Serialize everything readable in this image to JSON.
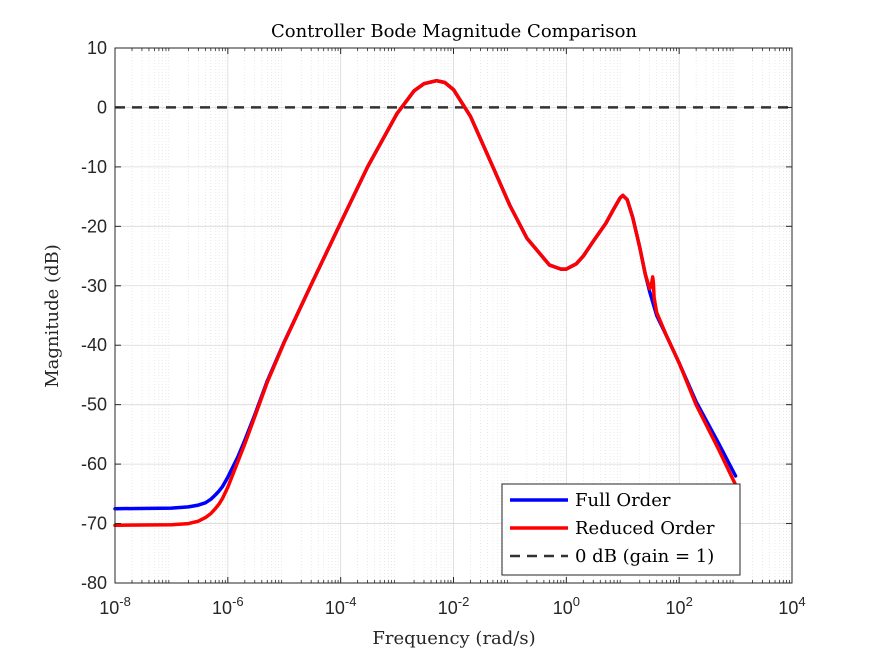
{
  "chart_data": {
    "type": "line",
    "title": "Controller Bode Magnitude Comparison",
    "xlabel": "Frequency (rad/s)",
    "ylabel": "Magnitude (dB)",
    "x_scale": "log",
    "xlim": [
      1e-08,
      10000
    ],
    "ylim": [
      -80,
      10
    ],
    "grid": true,
    "minor_grid": true,
    "legend_position": "bottom-right",
    "x_ticks": [
      {
        "value": 1e-08,
        "base": "10",
        "exp": "-8"
      },
      {
        "value": 1e-06,
        "base": "10",
        "exp": "-6"
      },
      {
        "value": 0.0001,
        "base": "10",
        "exp": "-4"
      },
      {
        "value": 0.01,
        "base": "10",
        "exp": "-2"
      },
      {
        "value": 1,
        "base": "10",
        "exp": "0"
      },
      {
        "value": 100,
        "base": "10",
        "exp": "2"
      },
      {
        "value": 10000,
        "base": "10",
        "exp": "4"
      }
    ],
    "y_ticks": [
      10,
      0,
      -10,
      -20,
      -30,
      -40,
      -50,
      -60,
      -70,
      -80
    ],
    "y_tick_labels": [
      "10",
      "0",
      "-10",
      "-20",
      "-30",
      "-40",
      "-50",
      "-60",
      "-70",
      "-80"
    ],
    "series": [
      {
        "name": "Full Order",
        "color": "#0000ff",
        "style": "solid",
        "x": [
          1e-08,
          1e-07,
          2e-07,
          3e-07,
          4e-07,
          5e-07,
          6e-07,
          7e-07,
          8e-07,
          1e-06,
          1.5e-06,
          2e-06,
          3e-06,
          5e-06,
          1e-05,
          3e-05,
          0.0001,
          0.0003,
          0.001,
          0.002,
          0.003,
          0.005,
          0.007,
          0.01,
          0.02,
          0.05,
          0.1,
          0.2,
          0.5,
          0.8,
          1,
          1.5,
          2,
          3,
          5,
          7,
          9,
          10,
          12,
          15,
          20,
          25,
          30,
          40,
          60,
          80,
          100,
          200,
          500,
          1000
        ],
        "y": [
          -67.5,
          -67.4,
          -67.2,
          -66.9,
          -66.5,
          -65.9,
          -65.2,
          -64.5,
          -63.8,
          -62.2,
          -58.8,
          -56.0,
          -51.7,
          -46.0,
          -39.4,
          -29.8,
          -19.4,
          -10.0,
          -1.0,
          2.8,
          4.0,
          4.5,
          4.2,
          3.0,
          -1.5,
          -10.0,
          -16.5,
          -22.0,
          -26.5,
          -27.2,
          -27.2,
          -26.3,
          -25.0,
          -22.5,
          -19.5,
          -17.0,
          -15.2,
          -14.8,
          -15.5,
          -18.5,
          -23.5,
          -28.0,
          -31.0,
          -35.0,
          -38.5,
          -41.0,
          -43.0,
          -49.5,
          -56.5,
          -62.0
        ]
      },
      {
        "name": "Reduced Order",
        "color": "#ff0000",
        "style": "solid",
        "x": [
          1e-08,
          1e-07,
          2e-07,
          3e-07,
          4e-07,
          5e-07,
          6e-07,
          7e-07,
          8e-07,
          1e-06,
          1.5e-06,
          2e-06,
          3e-06,
          5e-06,
          1e-05,
          3e-05,
          0.0001,
          0.0003,
          0.001,
          0.002,
          0.003,
          0.005,
          0.007,
          0.01,
          0.02,
          0.05,
          0.1,
          0.2,
          0.5,
          0.8,
          1,
          1.5,
          2,
          3,
          5,
          7,
          9,
          10,
          12,
          15,
          20,
          25,
          30,
          32,
          34,
          35,
          36,
          40,
          60,
          80,
          100,
          200,
          500,
          1000
        ],
        "y": [
          -70.3,
          -70.2,
          -70.0,
          -69.6,
          -69.0,
          -68.3,
          -67.5,
          -66.7,
          -65.8,
          -63.9,
          -59.6,
          -56.6,
          -52.0,
          -46.2,
          -39.5,
          -29.8,
          -19.4,
          -10.0,
          -1.0,
          2.8,
          4.0,
          4.5,
          4.2,
          3.0,
          -1.5,
          -10.0,
          -16.5,
          -22.0,
          -26.5,
          -27.2,
          -27.2,
          -26.3,
          -25.0,
          -22.5,
          -19.5,
          -17.0,
          -15.2,
          -14.8,
          -15.5,
          -18.5,
          -23.5,
          -28.0,
          -30.5,
          -30.0,
          -28.5,
          -29.5,
          -32.0,
          -34.5,
          -38.5,
          -41.0,
          -43.0,
          -50.0,
          -57.5,
          -63.5
        ]
      },
      {
        "name": "0 dB (gain = 1)",
        "color": "#333333",
        "style": "dashed",
        "x": [
          1e-08,
          10000
        ],
        "y": [
          0,
          0
        ]
      }
    ]
  }
}
